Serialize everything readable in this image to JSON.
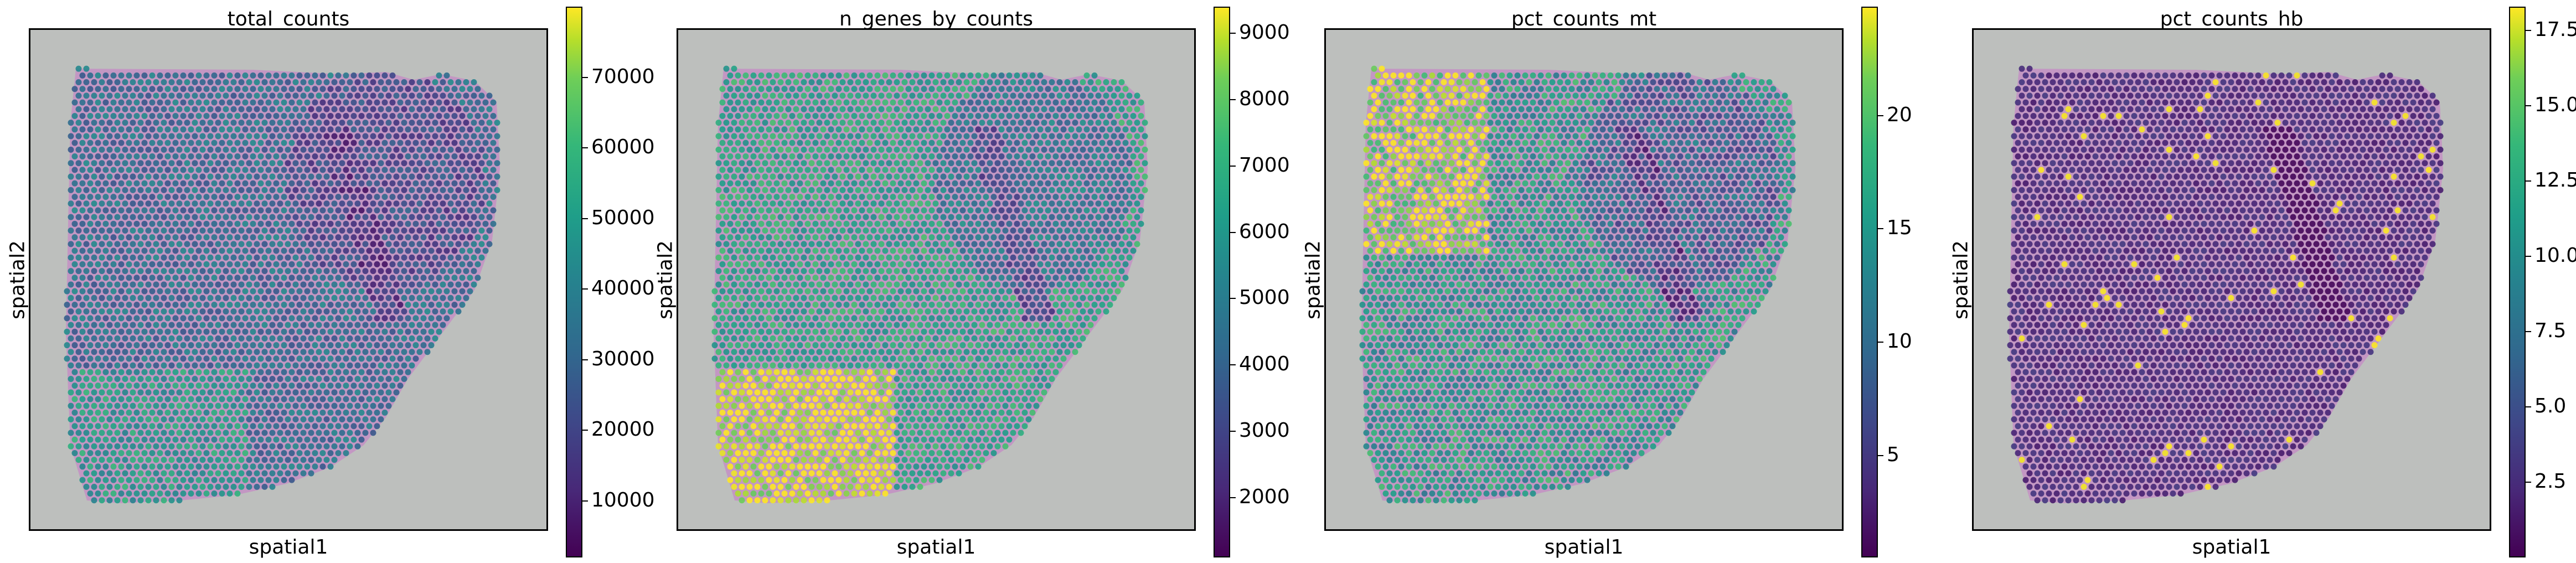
{
  "chart_data": [
    {
      "type": "heatmap",
      "title": "total_counts",
      "xlabel": "spatial1",
      "ylabel": "spatial2",
      "colormap": "viridis",
      "colorbar": {
        "range": [
          2000,
          80000
        ],
        "ticks": [
          10000,
          20000,
          30000,
          40000,
          50000,
          60000,
          70000
        ],
        "tick_labels": [
          "10000",
          "20000",
          "30000",
          "40000",
          "50000",
          "60000",
          "70000"
        ]
      },
      "show_axis_ticks": false
    },
    {
      "type": "heatmap",
      "title": "n_genes_by_counts",
      "xlabel": "spatial1",
      "ylabel": "spatial2",
      "colormap": "viridis",
      "colorbar": {
        "range": [
          1100,
          9400
        ],
        "ticks": [
          2000,
          3000,
          4000,
          5000,
          6000,
          7000,
          8000,
          9000
        ],
        "tick_labels": [
          "2000",
          "3000",
          "4000",
          "5000",
          "6000",
          "7000",
          "8000",
          "9000"
        ]
      },
      "show_axis_ticks": false
    },
    {
      "type": "heatmap",
      "title": "pct_counts_mt",
      "xlabel": "spatial1",
      "ylabel": "spatial2",
      "colormap": "viridis",
      "colorbar": {
        "range": [
          0.5,
          24.8
        ],
        "ticks": [
          5,
          10,
          15,
          20
        ],
        "tick_labels": [
          "5",
          "10",
          "15",
          "20"
        ]
      },
      "show_axis_ticks": false
    },
    {
      "type": "heatmap",
      "title": "pct_counts_hb",
      "xlabel": "spatial1",
      "ylabel": "spatial2",
      "colormap": "viridis",
      "colorbar": {
        "range": [
          0.0,
          18.3
        ],
        "ticks": [
          2.5,
          5.0,
          7.5,
          10.0,
          12.5,
          15.0,
          17.5
        ],
        "tick_labels": [
          "2.5",
          "5.0",
          "7.5",
          "10.0",
          "12.5",
          "15.0",
          "17.5"
        ]
      },
      "show_axis_ticks": false
    }
  ],
  "colors": {
    "background_tissue": "#bdbfbd",
    "tissue_pink": "#c48fc4",
    "viridis_low": "#440154",
    "viridis_high": "#fde725"
  }
}
